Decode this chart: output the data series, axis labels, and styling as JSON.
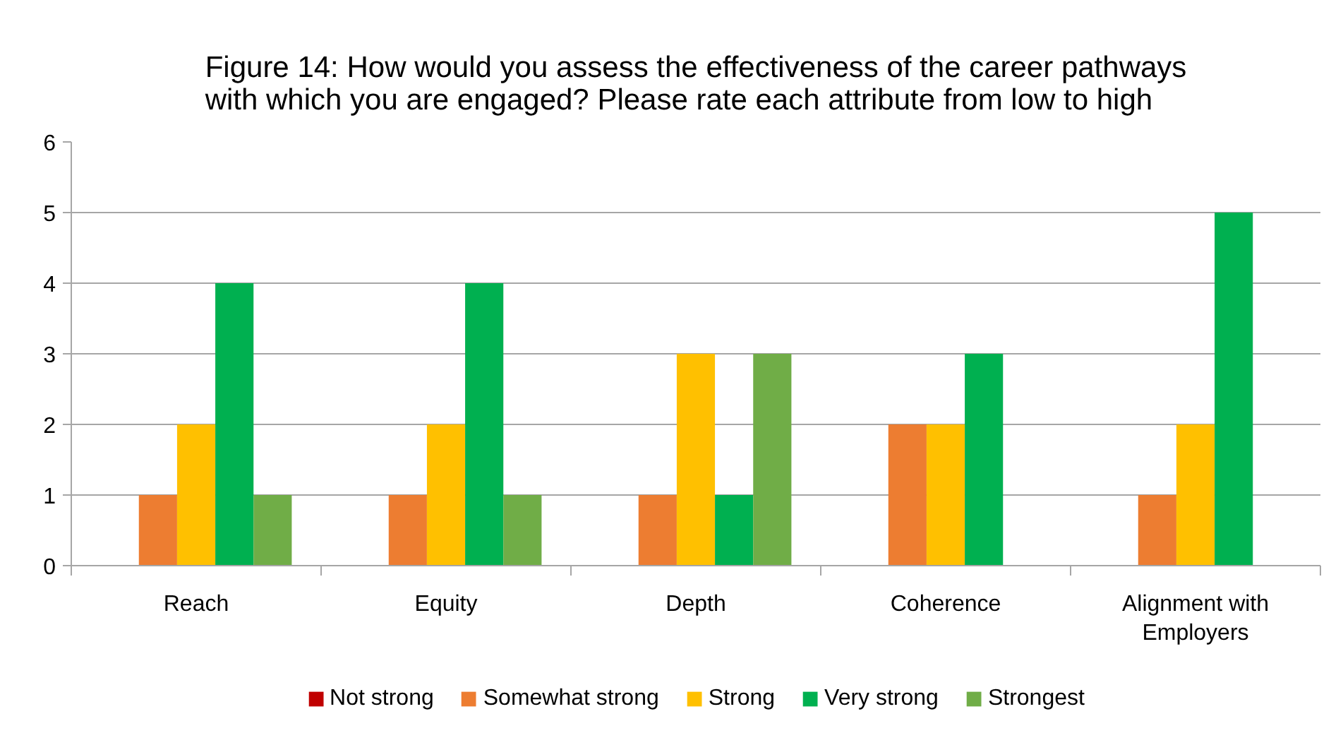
{
  "chart_data": {
    "type": "bar",
    "title": "Figure 14: How would you assess the effectiveness of the career pathways with which you are engaged? Please rate each attribute from low to high",
    "categories": [
      "Reach",
      "Equity",
      "Depth",
      "Coherence",
      "Alignment with Employers"
    ],
    "series": [
      {
        "name": "Not strong",
        "color": "#c00000",
        "values": [
          0,
          0,
          0,
          0,
          0
        ]
      },
      {
        "name": "Somewhat strong",
        "color": "#ed7d31",
        "values": [
          1,
          1,
          1,
          2,
          1
        ]
      },
      {
        "name": "Strong",
        "color": "#ffc000",
        "values": [
          2,
          2,
          3,
          2,
          2
        ]
      },
      {
        "name": "Very strong",
        "color": "#00b050",
        "values": [
          4,
          4,
          1,
          3,
          5
        ]
      },
      {
        "name": "Strongest",
        "color": "#70ad47",
        "values": [
          1,
          1,
          3,
          0,
          0
        ]
      }
    ],
    "ylim": [
      0,
      6
    ],
    "yticks": [
      0,
      1,
      2,
      3,
      4,
      5,
      6
    ],
    "grid": "y",
    "legend": "bottom"
  }
}
